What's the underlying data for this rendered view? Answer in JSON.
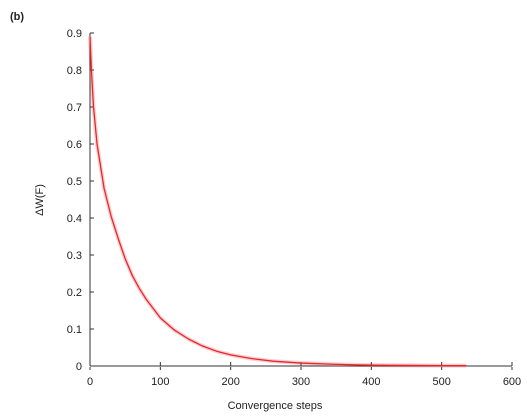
{
  "chart_data": {
    "type": "line",
    "panel_label": "(b)",
    "title": "",
    "xlabel": "Convergence steps",
    "ylabel": "ΔW(F)",
    "xlim": [
      0,
      600
    ],
    "ylim": [
      0,
      0.9
    ],
    "x_ticks": [
      0,
      100,
      200,
      300,
      400,
      500,
      600
    ],
    "y_ticks": [
      0,
      0.1,
      0.2,
      0.3,
      0.4,
      0.5,
      0.6,
      0.7,
      0.8,
      0.9
    ],
    "x_tick_labels": [
      "0",
      "100",
      "200",
      "300",
      "400",
      "500",
      "600"
    ],
    "y_tick_labels": [
      "0",
      "0.1",
      "0.2",
      "0.3",
      "0.4",
      "0.5",
      "0.6",
      "0.7",
      "0.8",
      "0.9"
    ],
    "grid": false,
    "series": [
      {
        "color": "#e8262b",
        "x": [
          0,
          2,
          5,
          10,
          20,
          30,
          40,
          50,
          60,
          70,
          80,
          90,
          100,
          120,
          140,
          160,
          180,
          200,
          230,
          260,
          300,
          340,
          380,
          420,
          460,
          500,
          535
        ],
        "y": [
          0.89,
          0.8,
          0.7,
          0.6,
          0.48,
          0.405,
          0.345,
          0.29,
          0.245,
          0.21,
          0.18,
          0.155,
          0.13,
          0.097,
          0.073,
          0.054,
          0.04,
          0.03,
          0.02,
          0.013,
          0.008,
          0.005,
          0.003,
          0.002,
          0.0015,
          0.001,
          0.001
        ]
      }
    ]
  }
}
